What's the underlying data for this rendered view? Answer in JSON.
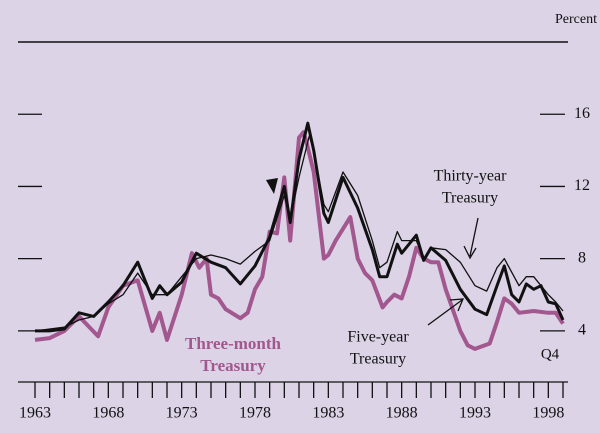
{
  "chart_data": {
    "type": "line",
    "unit_label": "Percent",
    "end_label": "Q4",
    "series": [
      {
        "name": "Three-month Treasury",
        "label_lines": [
          "Three-month",
          "Treasury"
        ],
        "color": "#a2578f",
        "width": 4,
        "x": [
          1963,
          1964,
          1965,
          1966,
          1967.3,
          1968,
          1969,
          1970,
          1971,
          1971.5,
          1972,
          1973,
          1973.7,
          1974.2,
          1974.7,
          1975,
          1975.5,
          1976,
          1977,
          1977.5,
          1978,
          1978.5,
          1979,
          1979.5,
          1980,
          1980.4,
          1981,
          1981.3,
          1981.5,
          1982,
          1982.7,
          1983,
          1983.5,
          1984.5,
          1985,
          1985.5,
          1986,
          1986.7,
          1987,
          1987.5,
          1988,
          1988.5,
          1989,
          1989.5,
          1990,
          1990.5,
          1991,
          1992,
          1992.5,
          1993,
          1994,
          1994.5,
          1995,
          1995.5,
          1996,
          1997,
          1998,
          1998.5,
          1999
        ],
        "values": [
          3.5,
          3.6,
          4.0,
          4.8,
          3.7,
          5.3,
          6.5,
          6.8,
          4.0,
          5.0,
          3.5,
          6.0,
          8.3,
          7.5,
          8.0,
          6.0,
          5.8,
          5.2,
          4.7,
          5.0,
          6.3,
          7.0,
          9.5,
          9.4,
          12.5,
          9.0,
          14.7,
          15.0,
          14.5,
          12.8,
          8.0,
          8.2,
          9.0,
          10.3,
          8.0,
          7.2,
          6.8,
          5.3,
          5.6,
          6.0,
          5.8,
          7.0,
          8.6,
          8.0,
          7.8,
          7.8,
          6.3,
          4.0,
          3.2,
          3.0,
          3.3,
          4.5,
          5.8,
          5.5,
          5.0,
          5.1,
          5.0,
          5.0,
          4.4
        ]
      },
      {
        "name": "Five-year Treasury",
        "label_lines": [
          "Five-year",
          "Treasury"
        ],
        "color": "#111111",
        "width": 3,
        "x": [
          1963,
          1964,
          1965,
          1966,
          1967,
          1968,
          1969,
          1970,
          1971,
          1971.5,
          1972,
          1973,
          1974,
          1975,
          1976,
          1977,
          1978,
          1979,
          1980,
          1980.4,
          1981,
          1981.6,
          1982,
          1982.7,
          1983,
          1984,
          1985,
          1986,
          1986.5,
          1987,
          1987.7,
          1988,
          1989,
          1989.5,
          1990,
          1991,
          1992,
          1993,
          1993.8,
          1994.5,
          1995,
          1995.5,
          1996,
          1996.5,
          1997,
          1997.5,
          1998,
          1998.5,
          1999
        ],
        "values": [
          4.0,
          4.0,
          4.1,
          5.0,
          4.8,
          5.6,
          6.5,
          7.8,
          5.8,
          6.5,
          6.0,
          6.7,
          8.3,
          7.8,
          7.5,
          6.6,
          7.6,
          9.2,
          12.0,
          10.0,
          13.5,
          15.5,
          14.0,
          10.5,
          10.0,
          12.5,
          10.8,
          8.5,
          7.0,
          7.0,
          8.8,
          8.3,
          9.3,
          7.9,
          8.6,
          7.9,
          6.3,
          5.2,
          4.9,
          6.5,
          7.6,
          6.0,
          5.6,
          6.6,
          6.3,
          6.5,
          5.6,
          5.5,
          4.6
        ]
      },
      {
        "name": "Thirty-year Treasury",
        "label_lines": [
          "Thirty-year",
          "Treasury"
        ],
        "color": "#111111",
        "width": 1.3,
        "x": [
          1963,
          1964,
          1965,
          1966,
          1967,
          1968,
          1969,
          1970,
          1971,
          1972,
          1973,
          1974,
          1975,
          1976,
          1977,
          1978,
          1979,
          1980,
          1980.4,
          1981,
          1981.7,
          1982,
          1982.7,
          1983,
          1984,
          1985,
          1986,
          1986.5,
          1987,
          1987.7,
          1988,
          1989,
          1989.5,
          1990,
          1991,
          1992,
          1993,
          1993.8,
          1994.5,
          1995,
          1996,
          1996.5,
          1997,
          1998,
          1998.5,
          1999
        ],
        "values": [
          4.0,
          4.1,
          4.2,
          4.6,
          4.8,
          5.5,
          6.0,
          7.2,
          6.0,
          6.0,
          7.0,
          8.0,
          8.2,
          8.0,
          7.7,
          8.4,
          9.0,
          11.5,
          10.2,
          12.5,
          14.8,
          14.0,
          11.0,
          10.6,
          12.8,
          11.5,
          9.0,
          7.5,
          7.8,
          9.5,
          9.0,
          9.0,
          8.0,
          8.6,
          8.5,
          7.8,
          6.5,
          6.2,
          7.5,
          8.0,
          6.5,
          7.0,
          7.0,
          6.0,
          5.6,
          5.1
        ]
      }
    ],
    "xlim": [
      1963,
      1999
    ],
    "xticks": [
      1963,
      1968,
      1973,
      1978,
      1983,
      1988,
      1993,
      1998
    ],
    "minor_xticks": [
      1963,
      1964,
      1965,
      1966,
      1967,
      1968,
      1969,
      1970,
      1971,
      1972,
      1973,
      1974,
      1975,
      1976,
      1977,
      1978,
      1979,
      1980,
      1981,
      1982,
      1983,
      1984,
      1985,
      1986,
      1987,
      1988,
      1989,
      1990,
      1991,
      1992,
      1993,
      1994,
      1995,
      1996,
      1997,
      1998,
      1999
    ],
    "ylim": [
      1.2,
      20
    ],
    "yticks": [
      4,
      8,
      12,
      16
    ]
  }
}
